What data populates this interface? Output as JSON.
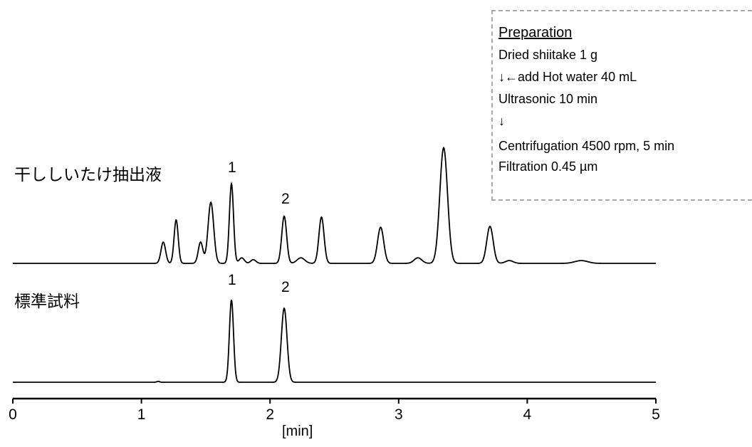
{
  "chart_data": {
    "type": "line",
    "xlabel": "[min]",
    "xlim": [
      0,
      5
    ],
    "x_ticks": [
      "0",
      "1",
      "2",
      "3",
      "4",
      "5"
    ],
    "series": [
      {
        "name": "干ししいたけ抽出液",
        "baseline": 0,
        "peaks": [
          {
            "rt": 1.17,
            "height": 0.23,
            "width": 0.018
          },
          {
            "rt": 1.27,
            "height": 0.47,
            "width": 0.016
          },
          {
            "rt": 1.46,
            "height": 0.23,
            "width": 0.018
          },
          {
            "rt": 1.54,
            "height": 0.66,
            "width": 0.022
          },
          {
            "rt": 1.7,
            "height": 0.86,
            "width": 0.016
          },
          {
            "rt": 1.78,
            "height": 0.06,
            "width": 0.02
          },
          {
            "rt": 1.87,
            "height": 0.04,
            "width": 0.02
          },
          {
            "rt": 2.11,
            "height": 0.51,
            "width": 0.019
          },
          {
            "rt": 2.24,
            "height": 0.06,
            "width": 0.03
          },
          {
            "rt": 2.4,
            "height": 0.5,
            "width": 0.02
          },
          {
            "rt": 2.86,
            "height": 0.39,
            "width": 0.024
          },
          {
            "rt": 3.15,
            "height": 0.06,
            "width": 0.03
          },
          {
            "rt": 3.35,
            "height": 1.25,
            "width": 0.03
          },
          {
            "rt": 3.71,
            "height": 0.4,
            "width": 0.025
          },
          {
            "rt": 3.86,
            "height": 0.03,
            "width": 0.03
          },
          {
            "rt": 4.42,
            "height": 0.03,
            "width": 0.05
          }
        ],
        "peak_labels": [
          {
            "rt": 1.7,
            "label": "1"
          },
          {
            "rt": 2.11,
            "label": "2"
          }
        ]
      },
      {
        "name": "標準試料",
        "baseline": 0,
        "peaks": [
          {
            "rt": 1.13,
            "height": 0.01,
            "width": 0.01
          },
          {
            "rt": 1.7,
            "height": 0.89,
            "width": 0.016
          },
          {
            "rt": 2.11,
            "height": 0.8,
            "width": 0.022
          }
        ],
        "peak_labels": [
          {
            "rt": 1.7,
            "label": "1"
          },
          {
            "rt": 2.11,
            "label": "2"
          }
        ]
      }
    ],
    "grid": false,
    "legend": "none"
  },
  "preparation": {
    "title": "Preparation",
    "lines": [
      "Dried shiitake 1 g",
      "  ↓←add Hot water 40 mL",
      "Ultrasonic 10 min",
      "  ↓",
      "Centrifugation 4500 rpm, 5 min",
      "Filtration 0.45 µm"
    ]
  },
  "colors": {
    "trace": "#000000",
    "box_border": "#a9a9a9"
  }
}
